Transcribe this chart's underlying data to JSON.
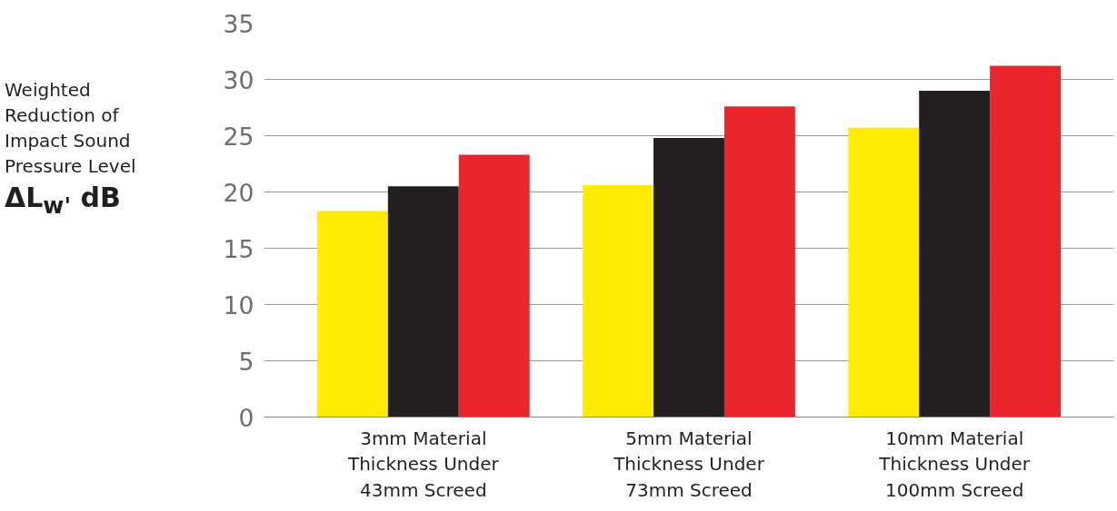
{
  "chart_data": {
    "type": "bar",
    "ylabel": "Weighted\nReduction of\nImpact Sound\nPressure Level\nΔL$_{w'}$ dB",
    "categories": [
      "3mm Material\nThickness Under\n43mm Screed",
      "5mm Material\nThickness Under\n73mm Screed",
      "10mm Material\nThickness Under\n100mm Screed"
    ],
    "series": [
      {
        "color": "#ffec00",
        "values": [
          18.3,
          20.6,
          25.7
        ]
      },
      {
        "color": "#231f20",
        "values": [
          20.5,
          24.8,
          29.0
        ]
      },
      {
        "color": "#e8262b",
        "values": [
          23.3,
          27.6,
          31.2
        ]
      }
    ],
    "ylim": [
      0,
      35
    ],
    "yticks": [
      0,
      5,
      10,
      15,
      20,
      25,
      30,
      35
    ],
    "grid": "y"
  }
}
